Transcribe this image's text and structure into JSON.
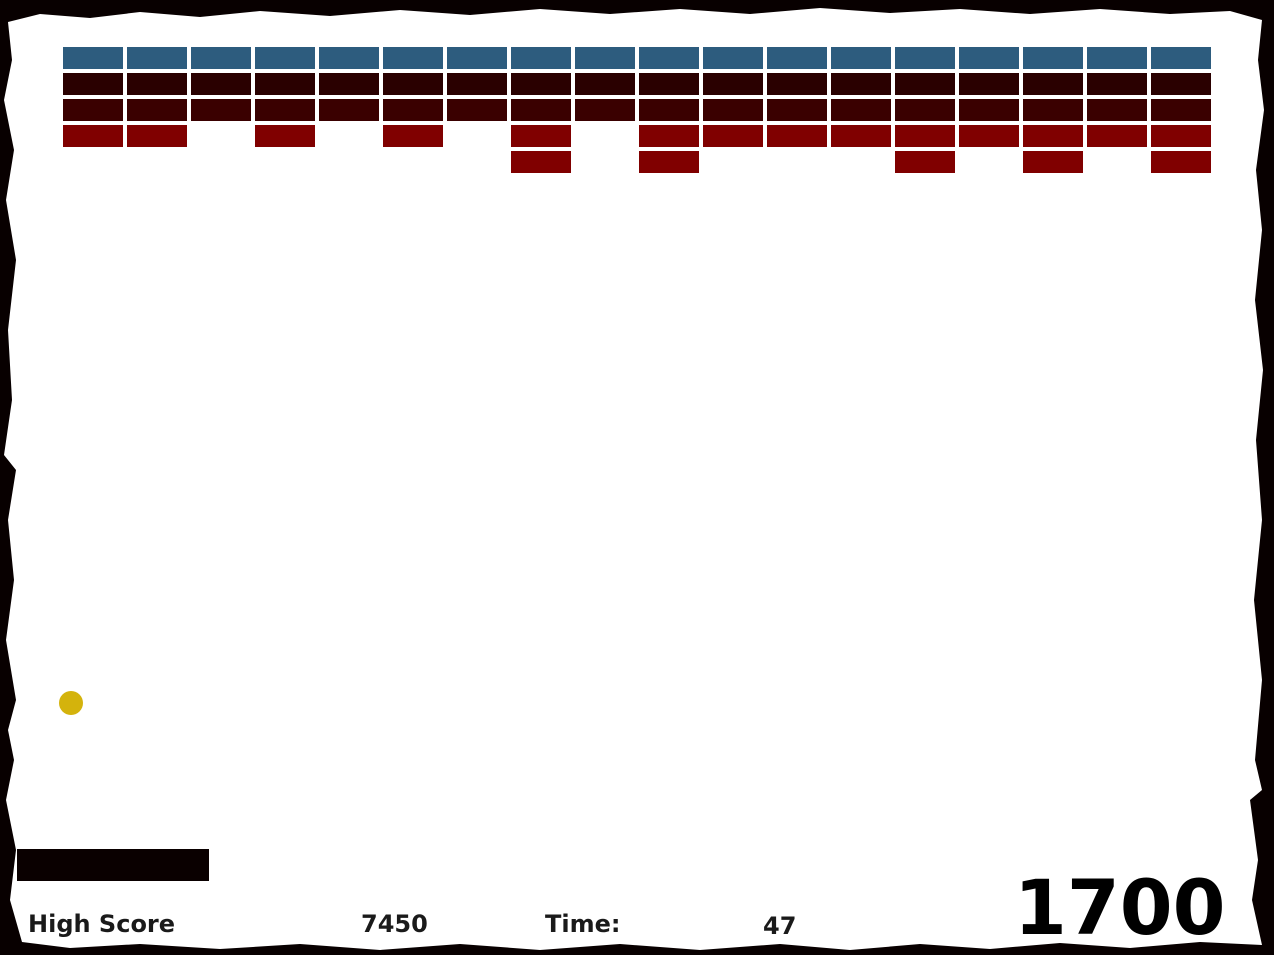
{
  "colors": {
    "border": "#080000",
    "field": "#ffffff",
    "ball": "#d4b30c",
    "paddle": "#0a0000"
  },
  "bricks": {
    "columns": 18,
    "rows": [
      {
        "color": "#2d5c7e",
        "cells": [
          1,
          1,
          1,
          1,
          1,
          1,
          1,
          1,
          1,
          1,
          1,
          1,
          1,
          1,
          1,
          1,
          1,
          1
        ]
      },
      {
        "color": "#2a0000",
        "cells": [
          1,
          1,
          1,
          1,
          1,
          1,
          1,
          1,
          1,
          1,
          1,
          1,
          1,
          1,
          1,
          1,
          1,
          1
        ]
      },
      {
        "color": "#3a0000",
        "cells": [
          1,
          1,
          1,
          1,
          1,
          1,
          1,
          1,
          1,
          1,
          1,
          1,
          1,
          1,
          1,
          1,
          1,
          1
        ]
      },
      {
        "color": "#800000",
        "cells": [
          1,
          1,
          0,
          1,
          0,
          1,
          0,
          1,
          0,
          1,
          1,
          1,
          1,
          1,
          1,
          1,
          1,
          1
        ]
      },
      {
        "color": "#800000",
        "cells": [
          0,
          0,
          0,
          0,
          0,
          0,
          0,
          1,
          0,
          1,
          0,
          0,
          0,
          1,
          0,
          1,
          0,
          1
        ]
      }
    ]
  },
  "hud": {
    "high_score_label": "High Score",
    "high_score_value": "7450",
    "time_label": "Time:",
    "time_value": "47",
    "current_score": "1700"
  }
}
